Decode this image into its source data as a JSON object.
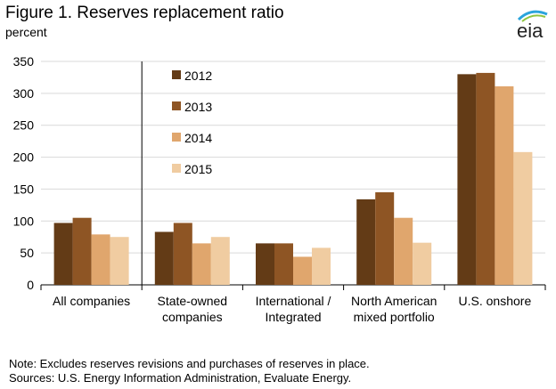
{
  "header": {
    "title": "Figure 1. Reserves replacement ratio",
    "unit": "percent",
    "logo_text": "eia"
  },
  "notes": {
    "note": "Note: Excludes reserves revisions and purchases of reserves in place.",
    "sources": "Sources: U.S. Energy Information Administration, Evaluate Energy."
  },
  "colors": {
    "2012": "#633b16",
    "2013": "#8e5524",
    "2014": "#e0a66d",
    "2015": "#f0cca1",
    "logo_arc": "#2aa4dc",
    "logo_arc2": "#8fc541"
  },
  "chart_data": {
    "type": "bar",
    "categories": [
      [
        "All companies"
      ],
      [
        "State-owned",
        "companies"
      ],
      [
        "International /",
        "Integrated"
      ],
      [
        "North American",
        "mixed portfolio"
      ],
      [
        "U.S. onshore"
      ]
    ],
    "series": [
      {
        "name": "2012",
        "values": [
          97,
          83,
          65,
          134,
          330
        ]
      },
      {
        "name": "2013",
        "values": [
          105,
          97,
          65,
          145,
          332
        ]
      },
      {
        "name": "2014",
        "values": [
          79,
          65,
          44,
          105,
          311
        ]
      },
      {
        "name": "2015",
        "values": [
          75,
          75,
          58,
          66,
          208
        ]
      }
    ],
    "ylim": [
      0,
      350
    ],
    "yticks": [
      0,
      50,
      100,
      150,
      200,
      250,
      300,
      350
    ],
    "grid": true,
    "legend_position": "inside-left (second group)"
  }
}
